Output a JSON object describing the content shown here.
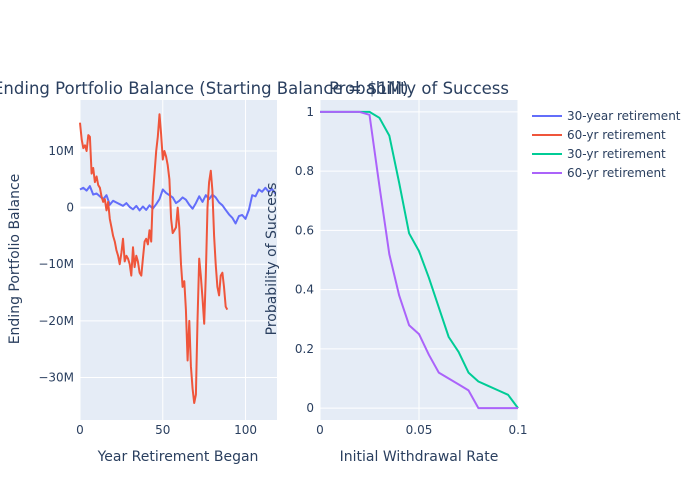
{
  "colors": {
    "plot_bg": "#E5ECF6",
    "grid": "#ffffff",
    "text": "#2a3f5f",
    "series_blue": "#636EFA",
    "series_red": "#EF553B",
    "series_green": "#00CC96",
    "series_purple": "#AB63FA"
  },
  "legend": {
    "placement": "right",
    "items": [
      {
        "label": "30-year retirement",
        "color": "#636EFA"
      },
      {
        "label": "60-yr retirement",
        "color": "#EF553B"
      },
      {
        "label": "30-yr retirement",
        "color": "#00CC96"
      },
      {
        "label": "60-yr retirement",
        "color": "#AB63FA"
      }
    ]
  },
  "chart_data": [
    {
      "type": "line",
      "title": "Ending Portfolio Balance (Starting Balance = $1M)",
      "xlabel": "Year Retirement Began",
      "ylabel": "Ending Portfolio Balance",
      "xlim": [
        0,
        119
      ],
      "ylim": [
        -37500000,
        19000000
      ],
      "x_ticks": [
        {
          "v": 0,
          "label": "0"
        },
        {
          "v": 50,
          "label": "50"
        },
        {
          "v": 100,
          "label": "100"
        }
      ],
      "y_ticks": [
        {
          "v": 10000000,
          "label": "10M"
        },
        {
          "v": 0,
          "label": "0"
        },
        {
          "v": -10000000,
          "label": "−10M"
        },
        {
          "v": -20000000,
          "label": "−20M"
        },
        {
          "v": -30000000,
          "label": "−30M"
        }
      ],
      "grid": true,
      "series": [
        {
          "name": "30-year retirement",
          "color": "#636EFA",
          "points": [
            [
              0,
              3200000
            ],
            [
              2,
              3500000
            ],
            [
              4,
              3000000
            ],
            [
              6,
              3800000
            ],
            [
              8,
              2300000
            ],
            [
              10,
              2500000
            ],
            [
              12,
              2000000
            ],
            [
              14,
              1500000
            ],
            [
              16,
              2200000
            ],
            [
              18,
              500000
            ],
            [
              20,
              1200000
            ],
            [
              22,
              900000
            ],
            [
              24,
              600000
            ],
            [
              26,
              300000
            ],
            [
              28,
              800000
            ],
            [
              30,
              100000
            ],
            [
              32,
              -300000
            ],
            [
              34,
              300000
            ],
            [
              36,
              -500000
            ],
            [
              38,
              200000
            ],
            [
              40,
              -400000
            ],
            [
              42,
              400000
            ],
            [
              44,
              -200000
            ],
            [
              46,
              600000
            ],
            [
              48,
              1500000
            ],
            [
              50,
              3200000
            ],
            [
              52,
              2600000
            ],
            [
              54,
              2200000
            ],
            [
              56,
              1800000
            ],
            [
              58,
              800000
            ],
            [
              60,
              1200000
            ],
            [
              62,
              1800000
            ],
            [
              64,
              1400000
            ],
            [
              66,
              500000
            ],
            [
              68,
              -200000
            ],
            [
              70,
              800000
            ],
            [
              72,
              2000000
            ],
            [
              74,
              1000000
            ],
            [
              76,
              2200000
            ],
            [
              78,
              1500000
            ],
            [
              80,
              2300000
            ],
            [
              82,
              1800000
            ],
            [
              84,
              900000
            ],
            [
              86,
              400000
            ],
            [
              88,
              -400000
            ],
            [
              90,
              -1200000
            ],
            [
              92,
              -1800000
            ],
            [
              94,
              -2800000
            ],
            [
              96,
              -1500000
            ],
            [
              98,
              -1300000
            ],
            [
              100,
              -2000000
            ],
            [
              102,
              -400000
            ],
            [
              104,
              2200000
            ],
            [
              106,
              2000000
            ],
            [
              108,
              3200000
            ],
            [
              110,
              2800000
            ],
            [
              112,
              3500000
            ],
            [
              114,
              2800000
            ],
            [
              116,
              3300000
            ],
            [
              118,
              2500000
            ]
          ]
        },
        {
          "name": "60-yr retirement",
          "color": "#EF553B",
          "points": [
            [
              0,
              15000000
            ],
            [
              1,
              12000000
            ],
            [
              2,
              10500000
            ],
            [
              3,
              11000000
            ],
            [
              4,
              10000000
            ],
            [
              5,
              12800000
            ],
            [
              6,
              12500000
            ],
            [
              7,
              6000000
            ],
            [
              8,
              7000000
            ],
            [
              9,
              4500000
            ],
            [
              10,
              5500000
            ],
            [
              11,
              4000000
            ],
            [
              12,
              3500000
            ],
            [
              13,
              2000000
            ],
            [
              14,
              1000000
            ],
            [
              15,
              1500000
            ],
            [
              16,
              -500000
            ],
            [
              17,
              1000000
            ],
            [
              18,
              -2000000
            ],
            [
              19,
              -3500000
            ],
            [
              20,
              -5000000
            ],
            [
              21,
              -6000000
            ],
            [
              22,
              -7500000
            ],
            [
              23,
              -8500000
            ],
            [
              24,
              -10000000
            ],
            [
              25,
              -8000000
            ],
            [
              26,
              -5500000
            ],
            [
              27,
              -9500000
            ],
            [
              28,
              -8500000
            ],
            [
              29,
              -9000000
            ],
            [
              30,
              -10000000
            ],
            [
              31,
              -12000000
            ],
            [
              32,
              -7000000
            ],
            [
              33,
              -10500000
            ],
            [
              34,
              -8500000
            ],
            [
              35,
              -9500000
            ],
            [
              36,
              -11500000
            ],
            [
              37,
              -12000000
            ],
            [
              38,
              -9000000
            ],
            [
              39,
              -6000000
            ],
            [
              40,
              -5500000
            ],
            [
              41,
              -6500000
            ],
            [
              42,
              -4000000
            ],
            [
              43,
              -6000000
            ],
            [
              44,
              2000000
            ],
            [
              45,
              6000000
            ],
            [
              46,
              10000000
            ],
            [
              47,
              12500000
            ],
            [
              48,
              16500000
            ],
            [
              49,
              13000000
            ],
            [
              50,
              8500000
            ],
            [
              51,
              10000000
            ],
            [
              52,
              9000000
            ],
            [
              53,
              7500000
            ],
            [
              54,
              5000000
            ],
            [
              55,
              -2000000
            ],
            [
              56,
              -4500000
            ],
            [
              57,
              -4000000
            ],
            [
              58,
              -3500000
            ],
            [
              59,
              0
            ],
            [
              60,
              -3500000
            ],
            [
              61,
              -10000000
            ],
            [
              62,
              -14000000
            ],
            [
              63,
              -13000000
            ],
            [
              64,
              -18000000
            ],
            [
              65,
              -27000000
            ],
            [
              66,
              -20000000
            ],
            [
              67,
              -28000000
            ],
            [
              68,
              -32000000
            ],
            [
              69,
              -34500000
            ],
            [
              70,
              -33000000
            ],
            [
              71,
              -20000000
            ],
            [
              72,
              -9000000
            ],
            [
              73,
              -12000000
            ],
            [
              74,
              -16000000
            ],
            [
              75,
              -20500000
            ],
            [
              76,
              -12000000
            ],
            [
              77,
              0
            ],
            [
              78,
              4500000
            ],
            [
              79,
              6500000
            ],
            [
              80,
              3000000
            ],
            [
              81,
              -5000000
            ],
            [
              82,
              -10000000
            ],
            [
              83,
              -14000000
            ],
            [
              84,
              -15500000
            ],
            [
              85,
              -12000000
            ],
            [
              86,
              -11500000
            ],
            [
              87,
              -14000000
            ],
            [
              88,
              -17500000
            ],
            [
              89,
              -18000000
            ]
          ]
        }
      ]
    },
    {
      "type": "line",
      "title": "Probability of Success",
      "xlabel": "Initial Withdrawal Rate",
      "ylabel": "Probability of Success",
      "xlim": [
        0,
        0.1
      ],
      "ylim": [
        -0.04,
        1.04
      ],
      "x_ticks": [
        {
          "v": 0,
          "label": "0"
        },
        {
          "v": 0.05,
          "label": "0.05"
        },
        {
          "v": 0.1,
          "label": "0.1"
        }
      ],
      "y_ticks": [
        {
          "v": 0,
          "label": "0"
        },
        {
          "v": 0.2,
          "label": "0.2"
        },
        {
          "v": 0.4,
          "label": "0.4"
        },
        {
          "v": 0.6,
          "label": "0.6"
        },
        {
          "v": 0.8,
          "label": "0.8"
        },
        {
          "v": 1,
          "label": "1"
        }
      ],
      "grid": true,
      "series": [
        {
          "name": "30-yr retirement",
          "color": "#00CC96",
          "points": [
            [
              0,
              1
            ],
            [
              0.01,
              1
            ],
            [
              0.02,
              1
            ],
            [
              0.025,
              1
            ],
            [
              0.03,
              0.98
            ],
            [
              0.035,
              0.92
            ],
            [
              0.04,
              0.76
            ],
            [
              0.045,
              0.59
            ],
            [
              0.05,
              0.53
            ],
            [
              0.055,
              0.44
            ],
            [
              0.06,
              0.34
            ],
            [
              0.065,
              0.24
            ],
            [
              0.07,
              0.19
            ],
            [
              0.075,
              0.12
            ],
            [
              0.08,
              0.09
            ],
            [
              0.085,
              0.075
            ],
            [
              0.09,
              0.06
            ],
            [
              0.095,
              0.045
            ],
            [
              0.1,
              0
            ]
          ]
        },
        {
          "name": "60-yr retirement",
          "color": "#AB63FA",
          "points": [
            [
              0,
              1
            ],
            [
              0.01,
              1
            ],
            [
              0.02,
              1
            ],
            [
              0.025,
              0.99
            ],
            [
              0.03,
              0.75
            ],
            [
              0.035,
              0.52
            ],
            [
              0.04,
              0.38
            ],
            [
              0.045,
              0.28
            ],
            [
              0.05,
              0.25
            ],
            [
              0.055,
              0.18
            ],
            [
              0.06,
              0.12
            ],
            [
              0.065,
              0.1
            ],
            [
              0.07,
              0.08
            ],
            [
              0.075,
              0.06
            ],
            [
              0.08,
              0
            ],
            [
              0.085,
              0
            ],
            [
              0.09,
              0
            ],
            [
              0.095,
              0
            ],
            [
              0.1,
              0
            ]
          ]
        }
      ]
    }
  ]
}
